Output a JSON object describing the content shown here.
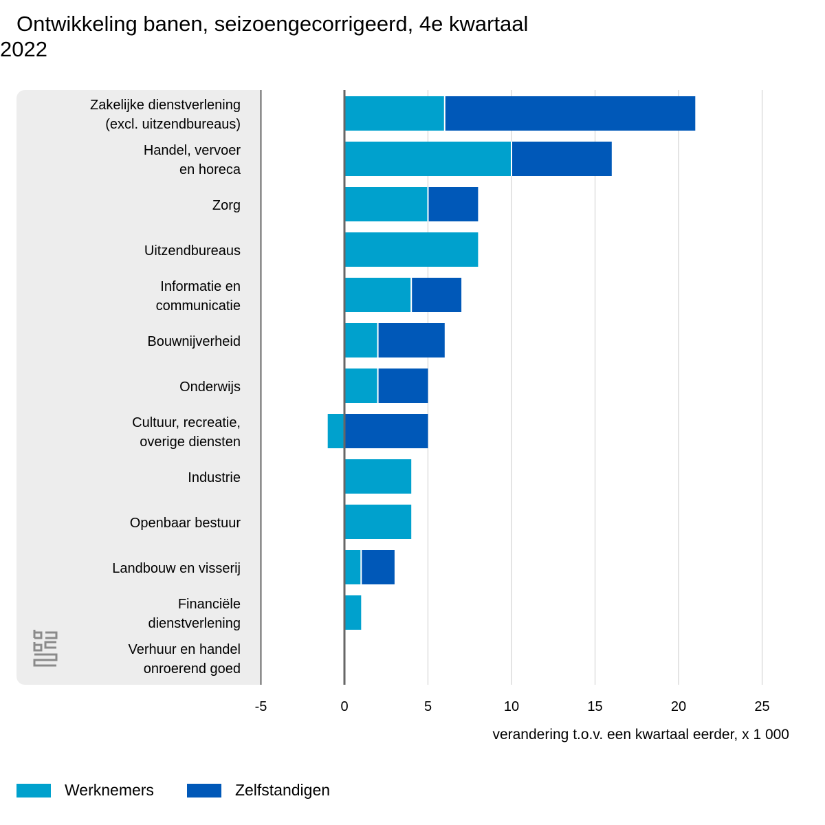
{
  "title": {
    "line1": "Ontwikkeling banen, seizoengecorrigeerd, 4e kwartaal",
    "line2": "2022"
  },
  "logo_icon": "cbs-logo",
  "chart_data": {
    "type": "bar",
    "orientation": "horizontal",
    "stacked": true,
    "categories": [
      "Zakelijke dienstverlening\n(excl. uitzendbureaus)",
      "Handel, vervoer\nen horeca",
      "Zorg",
      "Uitzendbureaus",
      "Informatie en\ncommunicatie",
      "Bouwnijverheid",
      "Onderwijs",
      "Cultuur, recreatie,\noverige diensten",
      "Industrie",
      "Openbaar bestuur",
      "Landbouw en visserij",
      "Financiële\ndienstverlening",
      "Verhuur en handel\nonroerend goed"
    ],
    "series": [
      {
        "name": "Werknemers",
        "color": "#00a1cd",
        "values": [
          6,
          10,
          5,
          8,
          4,
          2,
          2,
          -1,
          4,
          4,
          1,
          1,
          0
        ]
      },
      {
        "name": "Zelfstandigen",
        "color": "#0058b8",
        "values": [
          15,
          6,
          3,
          0,
          3,
          4,
          3,
          5,
          0,
          0,
          2,
          0,
          0
        ]
      }
    ],
    "xlim": [
      -5,
      26
    ],
    "xticks": [
      -5,
      0,
      5,
      10,
      15,
      20,
      25
    ],
    "xlabel": "verandering t.o.v. een kwartaal eerder, x 1 000",
    "grid": true,
    "legend_position": "bottom-left"
  }
}
